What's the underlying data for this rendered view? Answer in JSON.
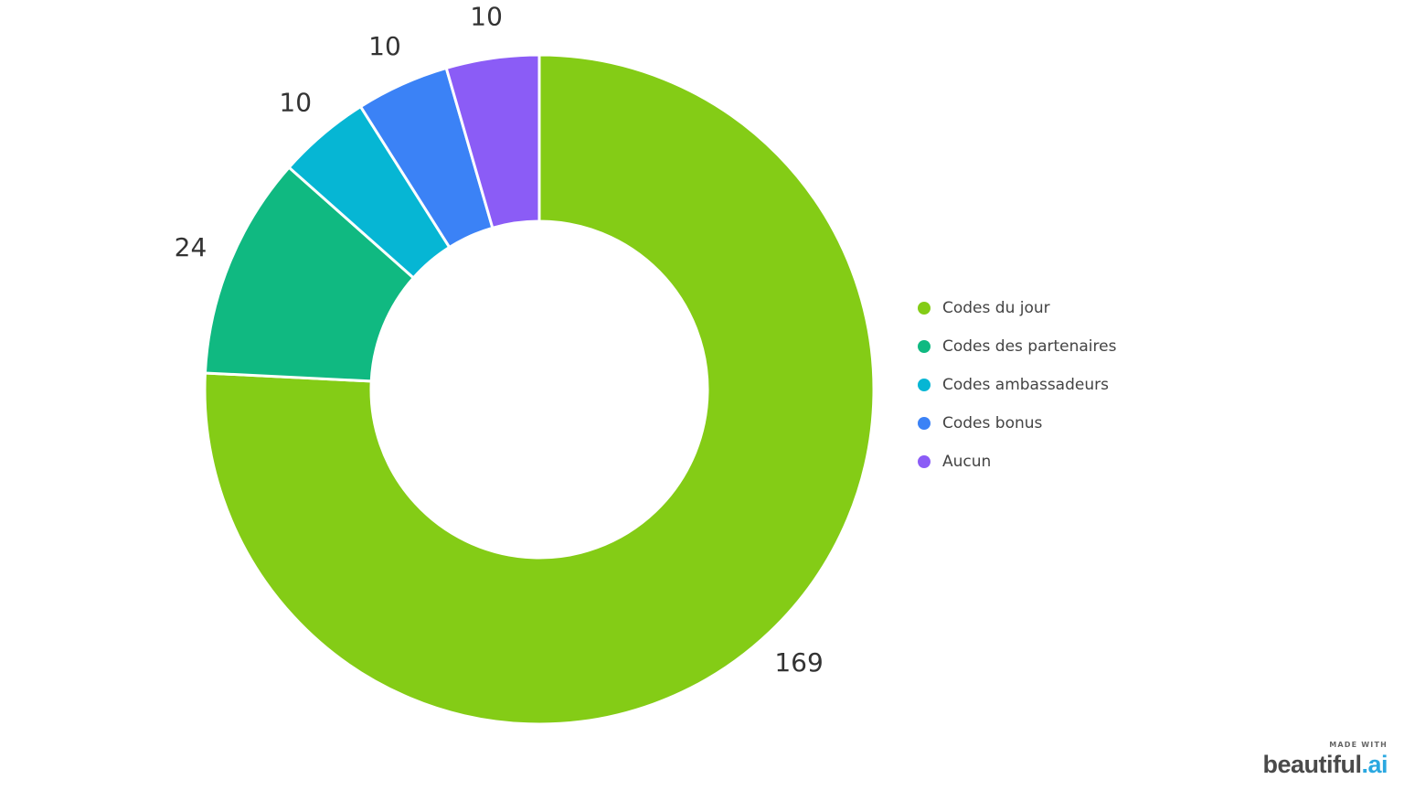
{
  "chart_data": {
    "type": "pie",
    "variant": "donut",
    "title": "",
    "categories": [
      "Codes du jour",
      "Codes des partenaires",
      "Codes ambassadeurs",
      "Codes bonus",
      "Aucun"
    ],
    "values": [
      169,
      24,
      10,
      10,
      10
    ],
    "colors": [
      "#84cc16",
      "#10b981",
      "#06b6d4",
      "#3b82f6",
      "#8b5cf6"
    ],
    "data_labels": [
      "169",
      "24",
      "10",
      "10",
      "10"
    ],
    "legend_placement": "right",
    "start_angle_deg": 0,
    "direction": "clockwise"
  },
  "watermark": {
    "small": "MADE WITH",
    "brand_main": "beautiful",
    "brand_dot": ".",
    "brand_suffix": "ai"
  }
}
